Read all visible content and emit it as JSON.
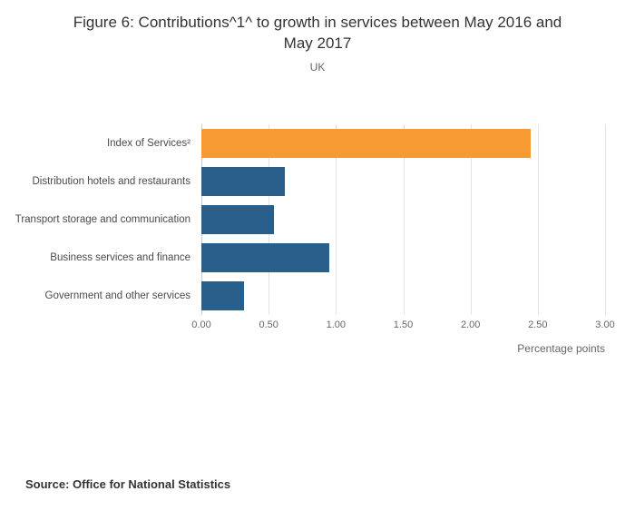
{
  "title": {
    "line1": "Figure 6: Contributions^1^ to growth in services between May 2016 and",
    "line2": "May 2017"
  },
  "subtitle": "UK",
  "source": "Source: Office for National Statistics",
  "chart_data": {
    "type": "bar",
    "orientation": "horizontal",
    "title": "Figure 6: Contributions^1^ to growth in services between May 2016 and May 2017",
    "subtitle": "UK",
    "categories": [
      "Index of Services²",
      "Distribution hotels and restaurants",
      "Transport storage and communication",
      "Business services and finance",
      "Government and other services"
    ],
    "values": [
      2.45,
      0.62,
      0.54,
      0.95,
      0.32
    ],
    "bar_colors": [
      "#f79a32",
      "#2a5f8c",
      "#2a5f8c",
      "#2a5f8c",
      "#2a5f8c"
    ],
    "accent_orange": "#f79a32",
    "accent_blue": "#2a5f8c",
    "xlabel": "Percentage points",
    "ylabel": "",
    "xlim": [
      0,
      3
    ],
    "xticks": [
      0,
      0.5,
      1,
      1.5,
      2,
      2.5,
      3
    ],
    "xtick_labels": [
      "0.00",
      "0.50",
      "1.00",
      "1.50",
      "2.00",
      "2.50",
      "3.00"
    ],
    "grid": "vertical",
    "legend": "none"
  }
}
